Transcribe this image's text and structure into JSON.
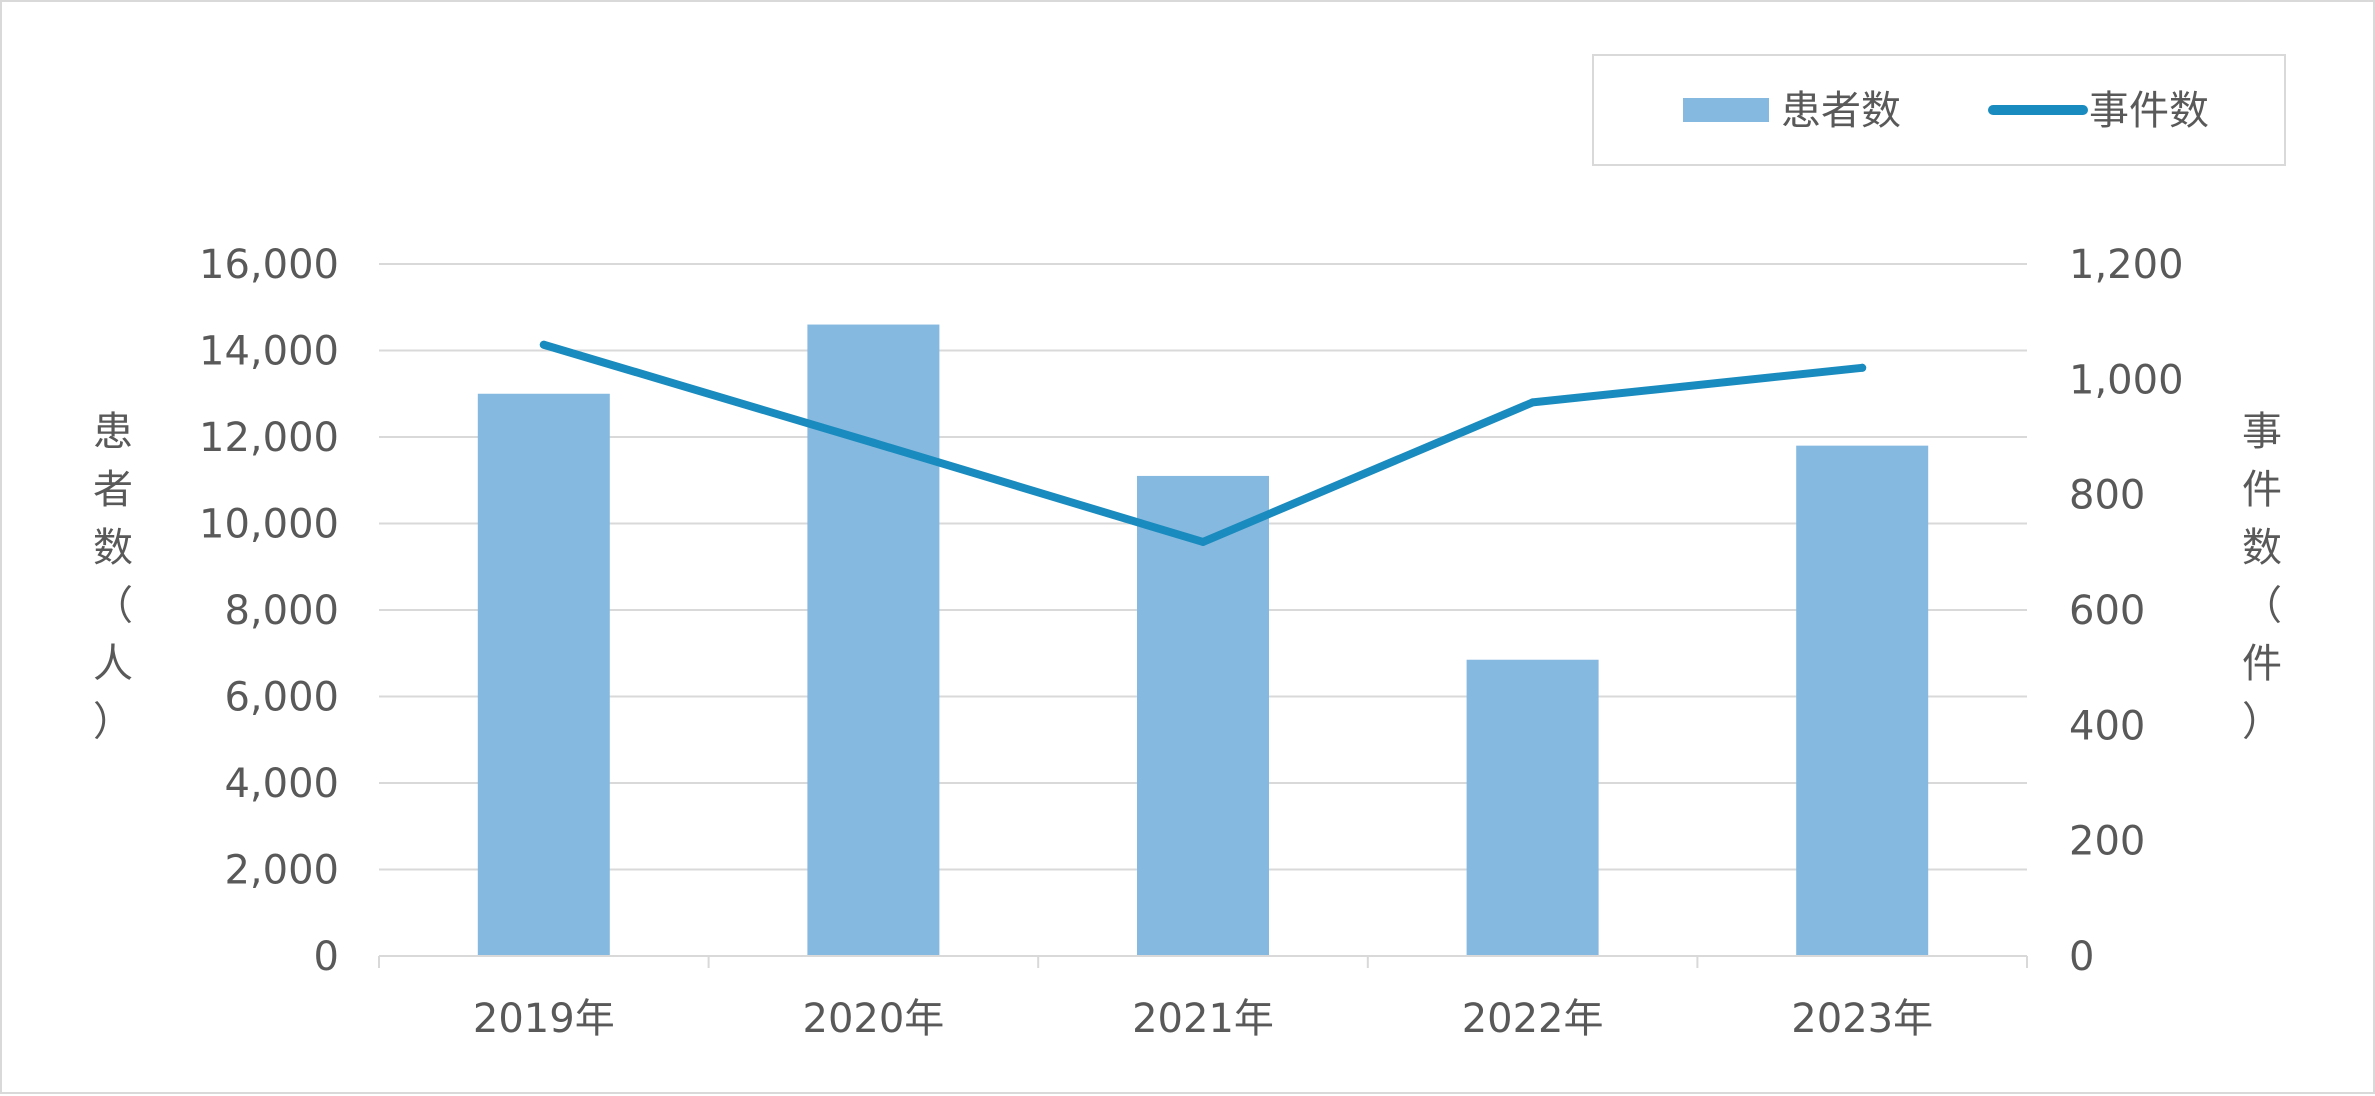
{
  "chart_data": {
    "type": "bar",
    "categories": [
      "2019年",
      "2020年",
      "2021年",
      "2022年",
      "2023年"
    ],
    "series": [
      {
        "name": "患者数",
        "type": "bar",
        "axis": "left",
        "values": [
          13000,
          14600,
          11100,
          6850,
          11800
        ]
      },
      {
        "name": "事件数",
        "type": "line",
        "axis": "right",
        "values": [
          1060,
          890,
          718,
          960,
          1020
        ]
      }
    ],
    "ylabel": "患者数（人）",
    "y2label": "事件数（件）",
    "ylim": [
      0,
      16000
    ],
    "y2lim": [
      0,
      1200
    ],
    "yticks": [
      "0",
      "2,000",
      "4,000",
      "6,000",
      "8,000",
      "10,000",
      "12,000",
      "14,000",
      "16,000"
    ],
    "y2ticks": [
      "0",
      "200",
      "400",
      "600",
      "800",
      "1,000",
      "1,200"
    ],
    "grid": true,
    "legend": "top-right",
    "colors": {
      "bar": "#85b9e0",
      "line": "#1a8bbe",
      "grid": "#d9d9d9",
      "text": "#595959"
    }
  }
}
